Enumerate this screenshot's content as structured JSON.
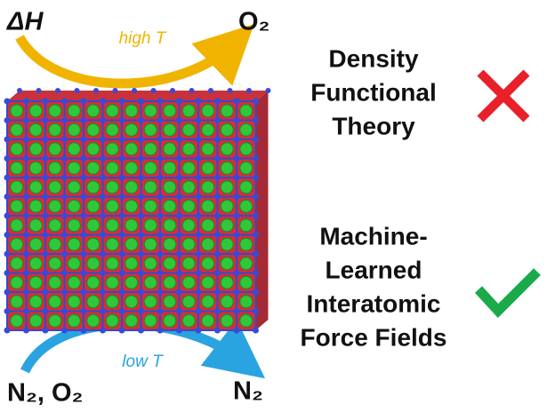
{
  "top_arrow": {
    "left_label": "ΔH",
    "arrow_label": "high T",
    "right_label": "O₂"
  },
  "bottom_arrow": {
    "left_label": "N₂, O₂",
    "arrow_label": "low T",
    "right_label": "N₂"
  },
  "methods": [
    {
      "lines": [
        "Density",
        "Functional",
        "Theory"
      ]
    },
    {
      "lines": [
        "Machine-",
        "Learned",
        "Interatomic",
        "Force Fields"
      ]
    }
  ]
}
